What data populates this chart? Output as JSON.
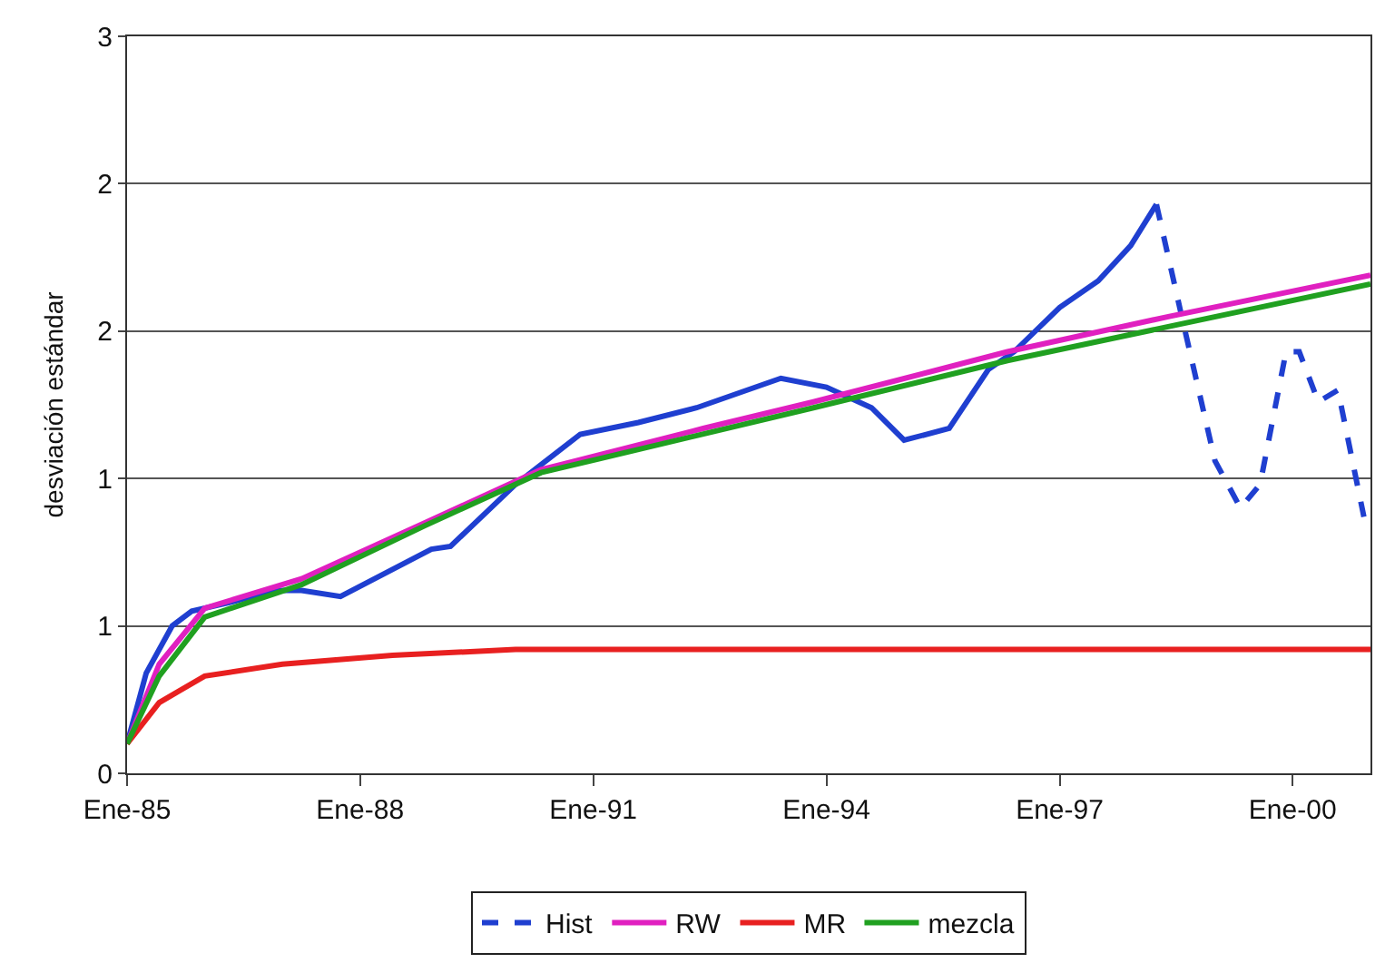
{
  "chart_data": {
    "type": "line",
    "ylabel": "desviación estándar",
    "xlim": [
      "1985-01",
      "2001-01"
    ],
    "xticks": [
      {
        "value": "1985-01",
        "label": "Ene-85"
      },
      {
        "value": "1988-01",
        "label": "Ene-88"
      },
      {
        "value": "1991-01",
        "label": "Ene-91"
      },
      {
        "value": "1994-01",
        "label": "Ene-94"
      },
      {
        "value": "1997-01",
        "label": "Ene-97"
      },
      {
        "value": "2000-01",
        "label": "Ene-00"
      }
    ],
    "ylim": [
      0,
      2.5
    ],
    "yticks": [
      0,
      {
        "value": 0.5,
        "label": "1"
      },
      1,
      {
        "value": 1.5,
        "label": "2"
      },
      2,
      {
        "value": 2.5,
        "label": "3"
      }
    ],
    "grid": "y",
    "legend": "bottom",
    "marker": "none",
    "series": [
      {
        "color": "#1f3fd0",
        "line_style": "solid",
        "x": [
          "1985-01",
          "1985-04",
          "1985-08",
          "1985-11",
          "1986-05",
          "1986-12",
          "1987-04",
          "1987-10",
          "1988-12",
          "1989-03",
          "1990-01",
          "1990-11",
          "1991-08",
          "1992-05",
          "1993-06",
          "1994-01",
          "1994-08",
          "1995-01",
          "1995-08",
          "1996-02",
          "1996-06",
          "1997-01",
          "1997-07",
          "1997-12",
          "1998-04"
        ],
        "values": [
          0.1,
          0.34,
          0.5,
          0.55,
          0.58,
          0.62,
          0.62,
          0.6,
          0.76,
          0.77,
          0.98,
          1.15,
          1.19,
          1.24,
          1.34,
          1.31,
          1.24,
          1.13,
          1.17,
          1.37,
          1.43,
          1.58,
          1.67,
          1.79,
          1.93
        ]
      },
      {
        "name": "Hist",
        "color": "#1f3fd0",
        "line_style": "dashed",
        "x": [
          "1998-04",
          "1998-08",
          "1999-01",
          "1999-05",
          "1999-08",
          "1999-12",
          "2000-02",
          "2000-05",
          "2000-08",
          "2000-12"
        ],
        "values": [
          1.93,
          1.54,
          1.06,
          0.9,
          0.98,
          1.43,
          1.43,
          1.26,
          1.3,
          0.87
        ]
      },
      {
        "name": "RW",
        "color": "#e020c0",
        "line_style": "solid",
        "x": [
          "1985-01",
          "1985-06",
          "1986-01",
          "1987-04",
          "1988-11",
          "1990-05",
          "1992-06",
          "1993-11",
          "1996-05",
          "1998-06",
          "2001-01"
        ],
        "values": [
          0.1,
          0.37,
          0.56,
          0.66,
          0.85,
          1.03,
          1.17,
          1.26,
          1.43,
          1.55,
          1.69
        ]
      },
      {
        "name": "MR",
        "color": "#e82020",
        "line_style": "solid",
        "x": [
          "1985-01",
          "1985-06",
          "1986-01",
          "1987-01",
          "1988-06",
          "1990-01",
          "2001-01"
        ],
        "values": [
          0.1,
          0.24,
          0.33,
          0.37,
          0.4,
          0.42,
          0.42
        ]
      },
      {
        "name": "mezcla",
        "color": "#20a020",
        "line_style": "solid",
        "x": [
          "1985-01",
          "1985-06",
          "1986-01",
          "1987-04",
          "1988-11",
          "1990-05",
          "1993-11",
          "1996-05",
          "2001-01"
        ],
        "values": [
          0.1,
          0.33,
          0.53,
          0.64,
          0.84,
          1.02,
          1.24,
          1.4,
          1.66
        ]
      }
    ]
  }
}
